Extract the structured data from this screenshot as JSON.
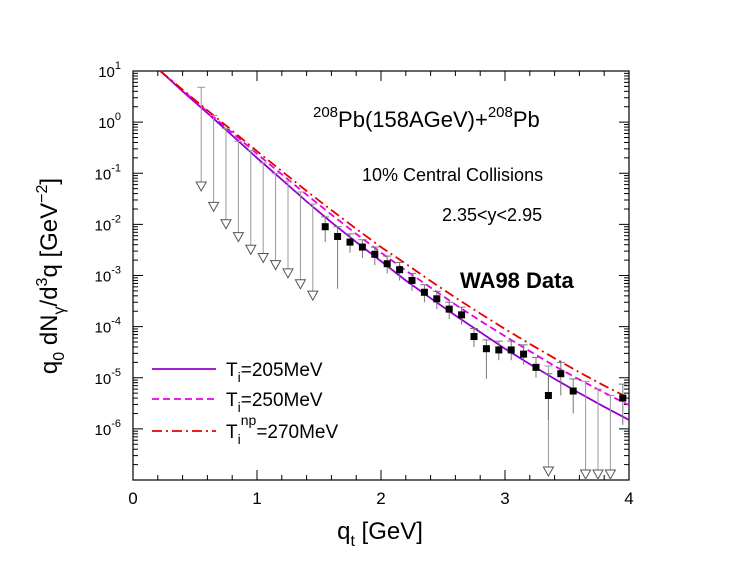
{
  "chart_data": {
    "type": "scatter",
    "log_y": true,
    "xlim": [
      0,
      4
    ],
    "ylim": [
      1e-07,
      10
    ],
    "x_ticks": [
      {
        "value": 0,
        "label": "0"
      },
      {
        "value": 1,
        "label": "1"
      },
      {
        "value": 2,
        "label": "2"
      },
      {
        "value": 3,
        "label": "3"
      },
      {
        "value": 4,
        "label": "4"
      }
    ],
    "y_ticks": [
      {
        "value": 10,
        "base": "10",
        "exp": "1"
      },
      {
        "value": 1,
        "base": "10",
        "exp": "0"
      },
      {
        "value": 0.1,
        "base": "10",
        "exp": "-1"
      },
      {
        "value": 0.01,
        "base": "10",
        "exp": "-2"
      },
      {
        "value": 0.001,
        "base": "10",
        "exp": "-3"
      },
      {
        "value": 0.0001,
        "base": "10",
        "exp": "-4"
      },
      {
        "value": 1e-05,
        "base": "10",
        "exp": "-5"
      },
      {
        "value": 1e-06,
        "base": "10",
        "exp": "-6"
      }
    ],
    "xlabel": {
      "main": "q",
      "sub": "t",
      "rest": " [GeV]"
    },
    "ylabel": {
      "q": "q",
      "q_sub": "0",
      "dN": " dN",
      "dN_sub": "γ",
      "d3": "/d",
      "d3_sup": "3",
      "tail": "q  [GeV",
      "tail_sup": "−2",
      "close": "]"
    },
    "annotations": {
      "reaction": {
        "sup1": "208",
        "mid": "Pb(158AGeV)+",
        "sup2": "208",
        "end": "Pb"
      },
      "centrality": "10% Central Collisions",
      "rapidity": "2.35<y<2.95",
      "dataset": "WA98 Data"
    },
    "series": [
      {
        "name_parts": {
          "base": "T",
          "sub": "i",
          "sup": "",
          "rest": "=205MeV"
        },
        "style": "solid",
        "color": "#9400d3",
        "x": [
          0.22,
          0.4,
          0.6,
          0.8,
          1.0,
          1.2,
          1.4,
          1.6,
          1.8,
          2.0,
          2.2,
          2.4,
          2.6,
          2.8,
          3.0,
          3.2,
          3.4,
          3.6,
          3.8,
          4.0
        ],
        "y": [
          10,
          4.0,
          1.5,
          0.55,
          0.2,
          0.075,
          0.028,
          0.011,
          0.0045,
          0.0019,
          0.0008,
          0.00036,
          0.000165,
          7.8e-05,
          3.7e-05,
          1.85e-05,
          9.5e-06,
          5e-06,
          2.7e-06,
          1.5e-06
        ]
      },
      {
        "name_parts": {
          "base": "T",
          "sub": "i",
          "sup": "",
          "rest": "=250MeV"
        },
        "style": "dashed",
        "color": "#e600e6",
        "x": [
          0.22,
          0.4,
          0.6,
          0.8,
          1.0,
          1.2,
          1.4,
          1.6,
          1.8,
          2.0,
          2.2,
          2.4,
          2.6,
          2.8,
          3.0,
          3.2,
          3.4,
          3.6,
          3.8,
          4.0
        ],
        "y": [
          10,
          4.2,
          1.6,
          0.62,
          0.24,
          0.095,
          0.038,
          0.0155,
          0.0065,
          0.0028,
          0.00125,
          0.00058,
          0.00027,
          0.00013,
          6.5e-05,
          3.3e-05,
          1.7e-05,
          9.2e-06,
          5.1e-06,
          2.9e-06
        ]
      },
      {
        "name_parts": {
          "base": "T",
          "sub": "i",
          "sup": "np",
          "rest": "=270MeV"
        },
        "style": "dashdot",
        "color": "#e60000",
        "x": [
          0.22,
          0.4,
          0.6,
          0.8,
          1.0,
          1.2,
          1.4,
          1.6,
          1.8,
          2.0,
          2.2,
          2.4,
          2.6,
          2.8,
          3.0,
          3.2,
          3.4,
          3.6,
          3.8,
          4.0
        ],
        "y": [
          10,
          4.3,
          1.7,
          0.68,
          0.27,
          0.11,
          0.045,
          0.019,
          0.0082,
          0.0036,
          0.0017,
          0.00078,
          0.00037,
          0.000181,
          9e-05,
          4.6e-05,
          2.4e-05,
          1.28e-05,
          7e-06,
          4e-06
        ]
      }
    ],
    "data_points": {
      "x": [
        1.55,
        1.65,
        1.75,
        1.85,
        1.95,
        2.05,
        2.15,
        2.25,
        2.35,
        2.45,
        2.55,
        2.65,
        2.75,
        2.85,
        2.95,
        3.05,
        3.15,
        3.25,
        3.35,
        3.45,
        3.55,
        3.95
      ],
      "y": [
        0.009,
        0.0058,
        0.0045,
        0.0036,
        0.0026,
        0.0017,
        0.0013,
        0.0008,
        0.00047,
        0.00035,
        0.00022,
        0.00017,
        6.4e-05,
        3.7e-05,
        3.5e-05,
        3.5e-05,
        2.9e-05,
        1.6e-05,
        4.5e-06,
        1.2e-05,
        5.5e-06,
        4e-06
      ],
      "err_hi": [
        0.014,
        0.009,
        0.0065,
        0.005,
        0.0036,
        0.0024,
        0.0018,
        0.0011,
        0.00066,
        0.00049,
        0.0003,
        0.00024,
        9.2e-05,
        5.5e-05,
        5.2e-05,
        5.2e-05,
        4.4e-05,
        2.5e-05,
        1.2e-05,
        2e-05,
        9.5e-06,
        7.5e-06
      ],
      "err_lo": [
        0.0045,
        0.00055,
        0.0028,
        0.0022,
        0.0016,
        0.0011,
        0.0008,
        0.0005,
        0.0003,
        0.00022,
        0.00014,
        0.00011,
        4e-05,
        9.5e-06,
        2.2e-05,
        2.2e-05,
        1.8e-05,
        1e-05,
        1.5e-06,
        4.5e-06,
        2e-06,
        1.2e-06
      ]
    },
    "upper_limits": [
      {
        "x": 0.55,
        "top": 4.8,
        "y": 0.045
      },
      {
        "x": 0.65,
        "top": 1.35,
        "y": 0.018
      },
      {
        "x": 0.75,
        "top": 0.75,
        "y": 0.0082
      },
      {
        "x": 0.85,
        "top": 0.42,
        "y": 0.0046
      },
      {
        "x": 0.95,
        "top": 0.28,
        "y": 0.0026
      },
      {
        "x": 1.05,
        "top": 0.16,
        "y": 0.0018
      },
      {
        "x": 1.15,
        "top": 0.1,
        "y": 0.0013
      },
      {
        "x": 1.25,
        "top": 0.07,
        "y": 0.0009
      },
      {
        "x": 1.35,
        "top": 0.043,
        "y": 0.00055
      },
      {
        "x": 1.45,
        "top": 0.025,
        "y": 0.00033
      },
      {
        "x": 3.35,
        "top": 1.7e-05,
        "y": 1.2e-07
      },
      {
        "x": 3.65,
        "top": 8.5e-06,
        "y": 1e-07
      },
      {
        "x": 3.75,
        "top": 6e-06,
        "y": 1e-07
      },
      {
        "x": 3.85,
        "top": 4.5e-06,
        "y": 1e-07
      }
    ]
  }
}
